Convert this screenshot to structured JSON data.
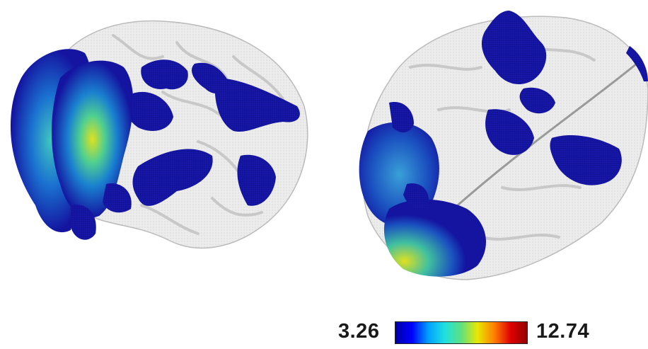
{
  "figure": {
    "views": [
      {
        "name": "lateral-view",
        "description_icon": "brain-lateral-render-icon"
      },
      {
        "name": "dorsal-view",
        "description_icon": "brain-dorsal-render-icon"
      }
    ]
  },
  "colorbar": {
    "min_label": "3.26",
    "max_label": "12.74",
    "colors": [
      "#0000a8",
      "#0000ff",
      "#00a0ff",
      "#20e0e0",
      "#60e080",
      "#e8e800",
      "#ff8000",
      "#e00000",
      "#900000"
    ]
  },
  "colors": {
    "cortex": "#e6e6e6",
    "cortex_shadow": "#b9b9b9",
    "activation_low": "#10109a",
    "activation_mid": "#1e90d0",
    "activation_high": "#d8e020"
  }
}
